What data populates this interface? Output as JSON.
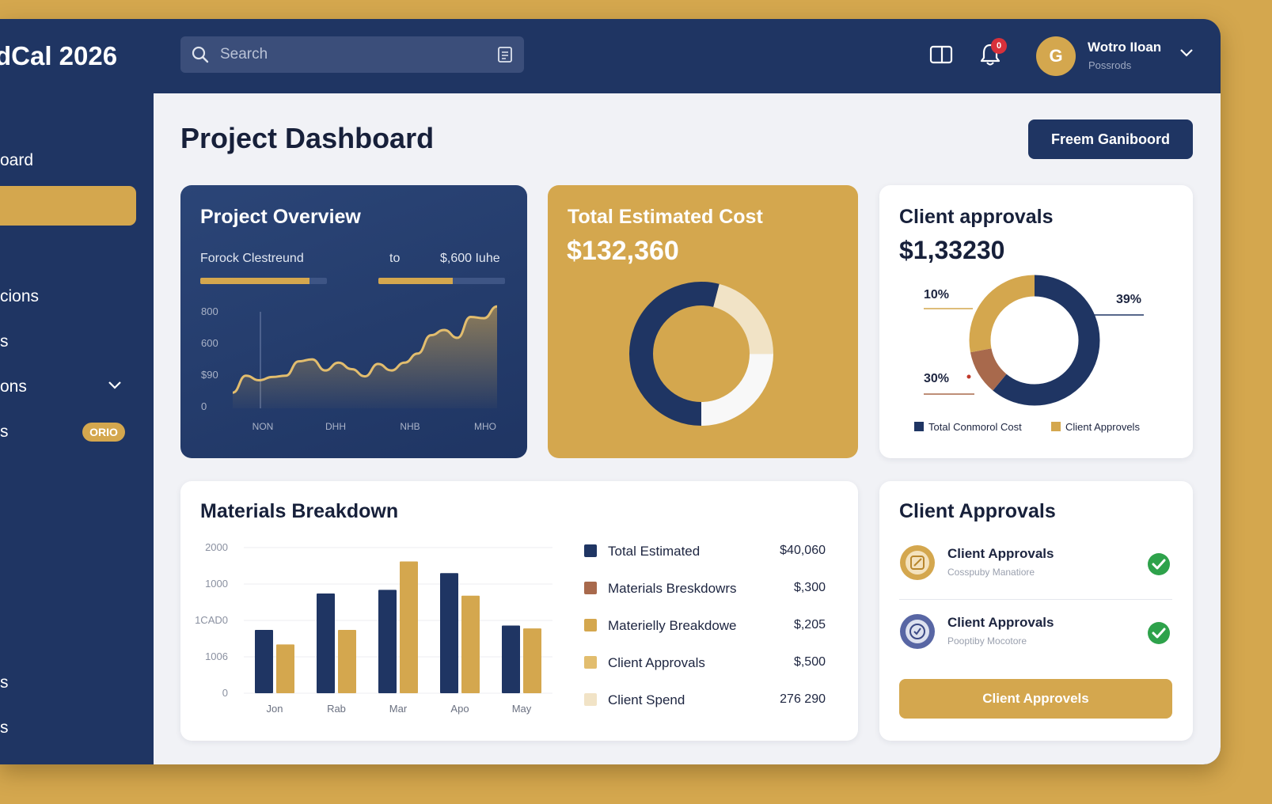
{
  "app": {
    "title": "dCal 2026"
  },
  "search": {
    "placeholder": "Search"
  },
  "notifications": {
    "count": "0"
  },
  "user": {
    "initial": "G",
    "name": "Wotro IIoan",
    "role": "Possrods"
  },
  "sidebar": {
    "items": [
      {
        "label": "oard",
        "active": false
      },
      {
        "label": "",
        "active": true
      },
      {
        "label": "",
        "active": false
      },
      {
        "label": "cions",
        "active": false
      },
      {
        "label": "s",
        "active": false
      },
      {
        "label": "ons",
        "active": false,
        "expandable": true
      },
      {
        "label": "s",
        "active": false,
        "badge": "ORIO"
      },
      {
        "label": "s",
        "active": false
      },
      {
        "label": "s",
        "active": false
      }
    ]
  },
  "page": {
    "title": "Project Dashboard",
    "action_label": "Freem Ganiboord"
  },
  "project_overview": {
    "title": "Project Overview",
    "progress_label": "Forock Clestreund",
    "progress_mid": "to",
    "progress_right": "$,600 Iuhe",
    "progress_left_fraction": 0.86,
    "progress_right_fraction": 0.59
  },
  "total_cost": {
    "title": "Total Estimated Cost",
    "amount": "$132,360"
  },
  "client_approvals_card": {
    "title": "Client approvals",
    "amount": "$1,33230",
    "pct_left_top": "10%",
    "pct_right_top": "39%",
    "pct_left_bottom": "30%",
    "legend": [
      "Total Conmorol Cost",
      "Client Approvels"
    ]
  },
  "materials": {
    "title": "Materials Breakdown",
    "legend": [
      {
        "label": "Total Estimated",
        "value": "$40,060",
        "color": "#1f3563"
      },
      {
        "label": "Materials Breskdowrs",
        "value": "$,300",
        "color": "#a8694c"
      },
      {
        "label": "Materielly Breakdowe",
        "value": "$,205",
        "color": "#d4a74e"
      },
      {
        "label": "Client Approvals",
        "value": "$,500",
        "color": "#e2bd6e"
      },
      {
        "label": "Client Spend",
        "value": "276 290",
        "color": "#f1e3c6"
      }
    ]
  },
  "approvals_list": {
    "title": "Client Approvals",
    "items": [
      {
        "title": "Client Approvals",
        "subtitle": "Cosspuby Manatiore"
      },
      {
        "title": "Client Approvals",
        "subtitle": "Pooptiby Mocotore"
      }
    ],
    "button_label": "Client Approvels"
  },
  "colors": {
    "navy": "#1f3563",
    "gold": "#d4a74e",
    "terracotta": "#a8694c",
    "cream": "#f1e3c6",
    "success": "#2ea24b"
  },
  "chart_data": [
    {
      "type": "area",
      "title": "Project Overview",
      "x_tick_labels": [
        "NON",
        "DHH",
        "NHB",
        "MHO"
      ],
      "y_tick_labels": [
        "800",
        "600",
        "$90",
        "0"
      ],
      "series": [
        {
          "values": [
            120,
            250,
            215,
            240,
            250,
            360,
            375,
            290,
            350,
            300,
            245,
            340,
            290,
            350,
            420,
            560,
            600,
            540,
            700,
            690,
            780
          ]
        }
      ],
      "grid": false
    },
    {
      "type": "pie",
      "title": "Total Estimated Cost",
      "donut": true,
      "slices": [
        {
          "value": 54,
          "color": "#1f3563"
        },
        {
          "value": 21,
          "color": "#f1e3c6"
        },
        {
          "value": 25,
          "color": "#f8f8f8"
        }
      ]
    },
    {
      "type": "pie",
      "title": "Client approvals",
      "donut": true,
      "slices": [
        {
          "value": 61,
          "color": "#1f3563"
        },
        {
          "value": 11,
          "color": "#a8694c"
        },
        {
          "value": 28,
          "color": "#d4a74e"
        }
      ]
    },
    {
      "type": "bar",
      "title": "Materials Breakdown",
      "categories": [
        "Jon",
        "Rab",
        "Mar",
        "Apo",
        "May"
      ],
      "y_tick_labels": [
        "2000",
        "1000",
        "1CAD0",
        "1006",
        "0"
      ],
      "ylim": [
        0,
        2000
      ],
      "series": [
        {
          "values": [
            870,
            1370,
            1420,
            1650,
            930
          ],
          "color": "#1f3563"
        },
        {
          "values": [
            670,
            870,
            1810,
            1340,
            890
          ],
          "color": "#d4a74e"
        }
      ],
      "grid": true
    }
  ]
}
